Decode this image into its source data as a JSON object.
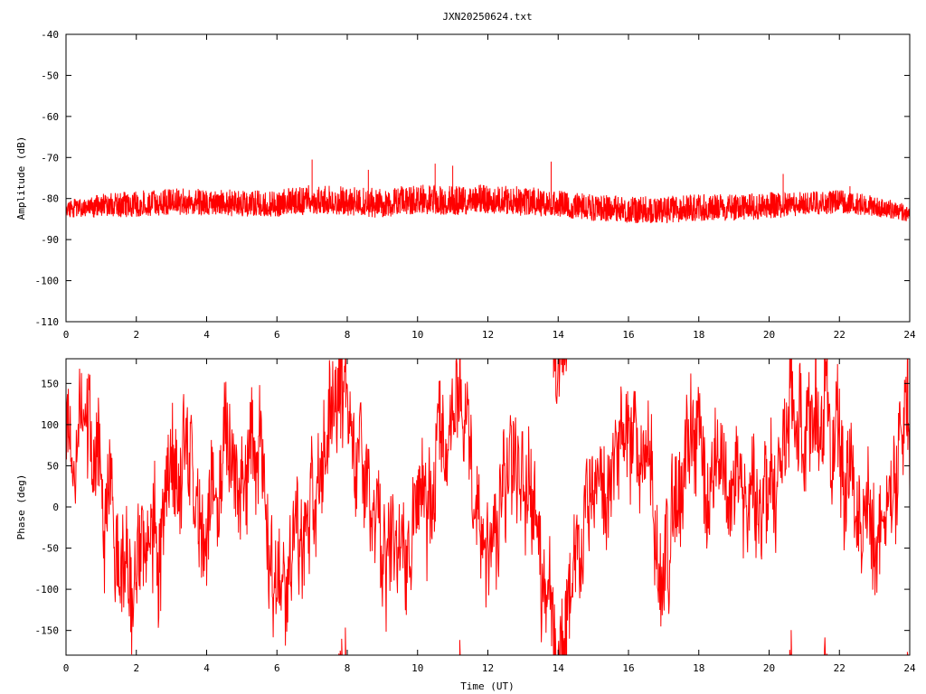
{
  "chart_data": [
    {
      "type": "line",
      "title": "JXN20250624.txt",
      "xlabel": "",
      "ylabel": "Amplitude (dB)",
      "xlim": [
        0,
        24
      ],
      "ylim": [
        -110,
        -40
      ],
      "x_ticks": [
        "0",
        "2",
        "4",
        "6",
        "8",
        "10",
        "12",
        "14",
        "16",
        "18",
        "20",
        "22",
        "24"
      ],
      "y_ticks": [
        "-40",
        "-50",
        "-60",
        "-70",
        "-80",
        "-90",
        "-100",
        "-110"
      ],
      "grid": false,
      "legend": "none",
      "series": [
        {
          "color": "#ff0000",
          "x": [
            0,
            1,
            2,
            3,
            4,
            5,
            6,
            7,
            8,
            9,
            10,
            11,
            12,
            13,
            14,
            15,
            16,
            17,
            18,
            19,
            20,
            21,
            22,
            23,
            24
          ],
          "center": [
            -83,
            -82.5,
            -82,
            -81.5,
            -81.5,
            -82,
            -82,
            -81,
            -81.5,
            -82,
            -81,
            -81.5,
            -81,
            -81.5,
            -82,
            -83,
            -83.5,
            -83.5,
            -83,
            -83,
            -82.5,
            -82,
            -81.5,
            -82.5,
            -84
          ],
          "spread": [
            3,
            4,
            4.5,
            4.5,
            4.5,
            4.5,
            4.5,
            5,
            5,
            5,
            5,
            5,
            5,
            5,
            4.5,
            4.5,
            4.5,
            4.5,
            4.5,
            4.5,
            4.5,
            4,
            4,
            3.5,
            3
          ],
          "peaks": [
            [
              7.0,
              -70.5
            ],
            [
              8.6,
              -73
            ],
            [
              10.5,
              -71.5
            ],
            [
              11.0,
              -72
            ],
            [
              13.8,
              -71
            ],
            [
              20.4,
              -74
            ],
            [
              22.3,
              -77
            ]
          ]
        }
      ]
    },
    {
      "type": "line",
      "title": "",
      "xlabel": "Time (UT)",
      "ylabel": "Phase (deg)",
      "xlim": [
        0,
        24
      ],
      "ylim": [
        -180,
        180
      ],
      "x_ticks": [
        "0",
        "2",
        "4",
        "6",
        "8",
        "10",
        "12",
        "14",
        "16",
        "18",
        "20",
        "22",
        "24"
      ],
      "y_ticks": [
        "150",
        "100",
        "50",
        "0",
        "-50",
        "-100",
        "-150"
      ],
      "y_tick_values": [
        150,
        100,
        50,
        0,
        -50,
        -100,
        -150
      ],
      "grid": false,
      "legend": "none",
      "series": [
        {
          "color": "#ff0000",
          "x": [
            0,
            1,
            2,
            3,
            4,
            5,
            6,
            7,
            8,
            9,
            10,
            11,
            12,
            13,
            14,
            15,
            16,
            17,
            18,
            19,
            20,
            21,
            22,
            23,
            24
          ],
          "y": [
            80,
            20,
            -90,
            60,
            -50,
            100,
            -120,
            40,
            120,
            -80,
            0,
            130,
            -40,
            60,
            -150,
            20,
            90,
            -60,
            110,
            30,
            -20,
            140,
            60,
            -100,
            90
          ],
          "wraps": true
        }
      ]
    }
  ]
}
